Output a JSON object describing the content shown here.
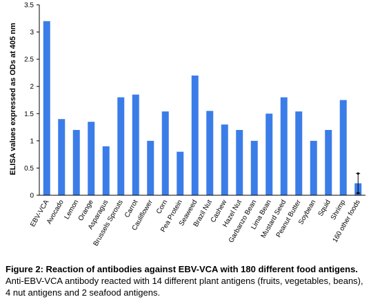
{
  "chart_data": {
    "type": "bar",
    "categories": [
      "EBV-VCA",
      "Avocado",
      "Lemon",
      "Orange",
      "Asparagus",
      "Brussels Sprouts",
      "Carrot",
      "Cauliflower",
      "Corn",
      "Pea Protein",
      "Seaweed",
      "Brazil Nut",
      "Cashew",
      "Hazel Nut",
      "Garbanzo Bean",
      "Lima Bean",
      "Mustard Seed",
      "Peanut Butter",
      "Soybean",
      "Squid",
      "Shrimp",
      "160 other foods"
    ],
    "values": [
      3.2,
      1.4,
      1.2,
      1.35,
      0.9,
      1.8,
      1.85,
      1.0,
      1.54,
      0.8,
      2.2,
      1.55,
      1.3,
      1.2,
      1.0,
      1.5,
      1.8,
      1.54,
      1.0,
      1.2,
      1.75,
      0.22
    ],
    "error_bar": {
      "category": "160 other foods",
      "low": 0.04,
      "high": 0.4
    },
    "ylabel": "ELISA values expressed as ODs at 405 nm",
    "xlabel": "",
    "ylim": [
      0,
      3.5
    ],
    "yticks": [
      "0",
      "0.5",
      "1",
      "1.5",
      "2",
      "2.5",
      "3",
      "3.5"
    ],
    "bar_color": "#3b7de8",
    "grid": false
  },
  "caption": {
    "title": "Figure 2: Reaction of antibodies against EBV-VCA with 180 different food antigens.",
    "text": " Anti-EBV-VCA antibody reacted with 14 different plant antigens (fruits, vegetables, beans), 4 nut antigens and 2 seafood antigens."
  }
}
